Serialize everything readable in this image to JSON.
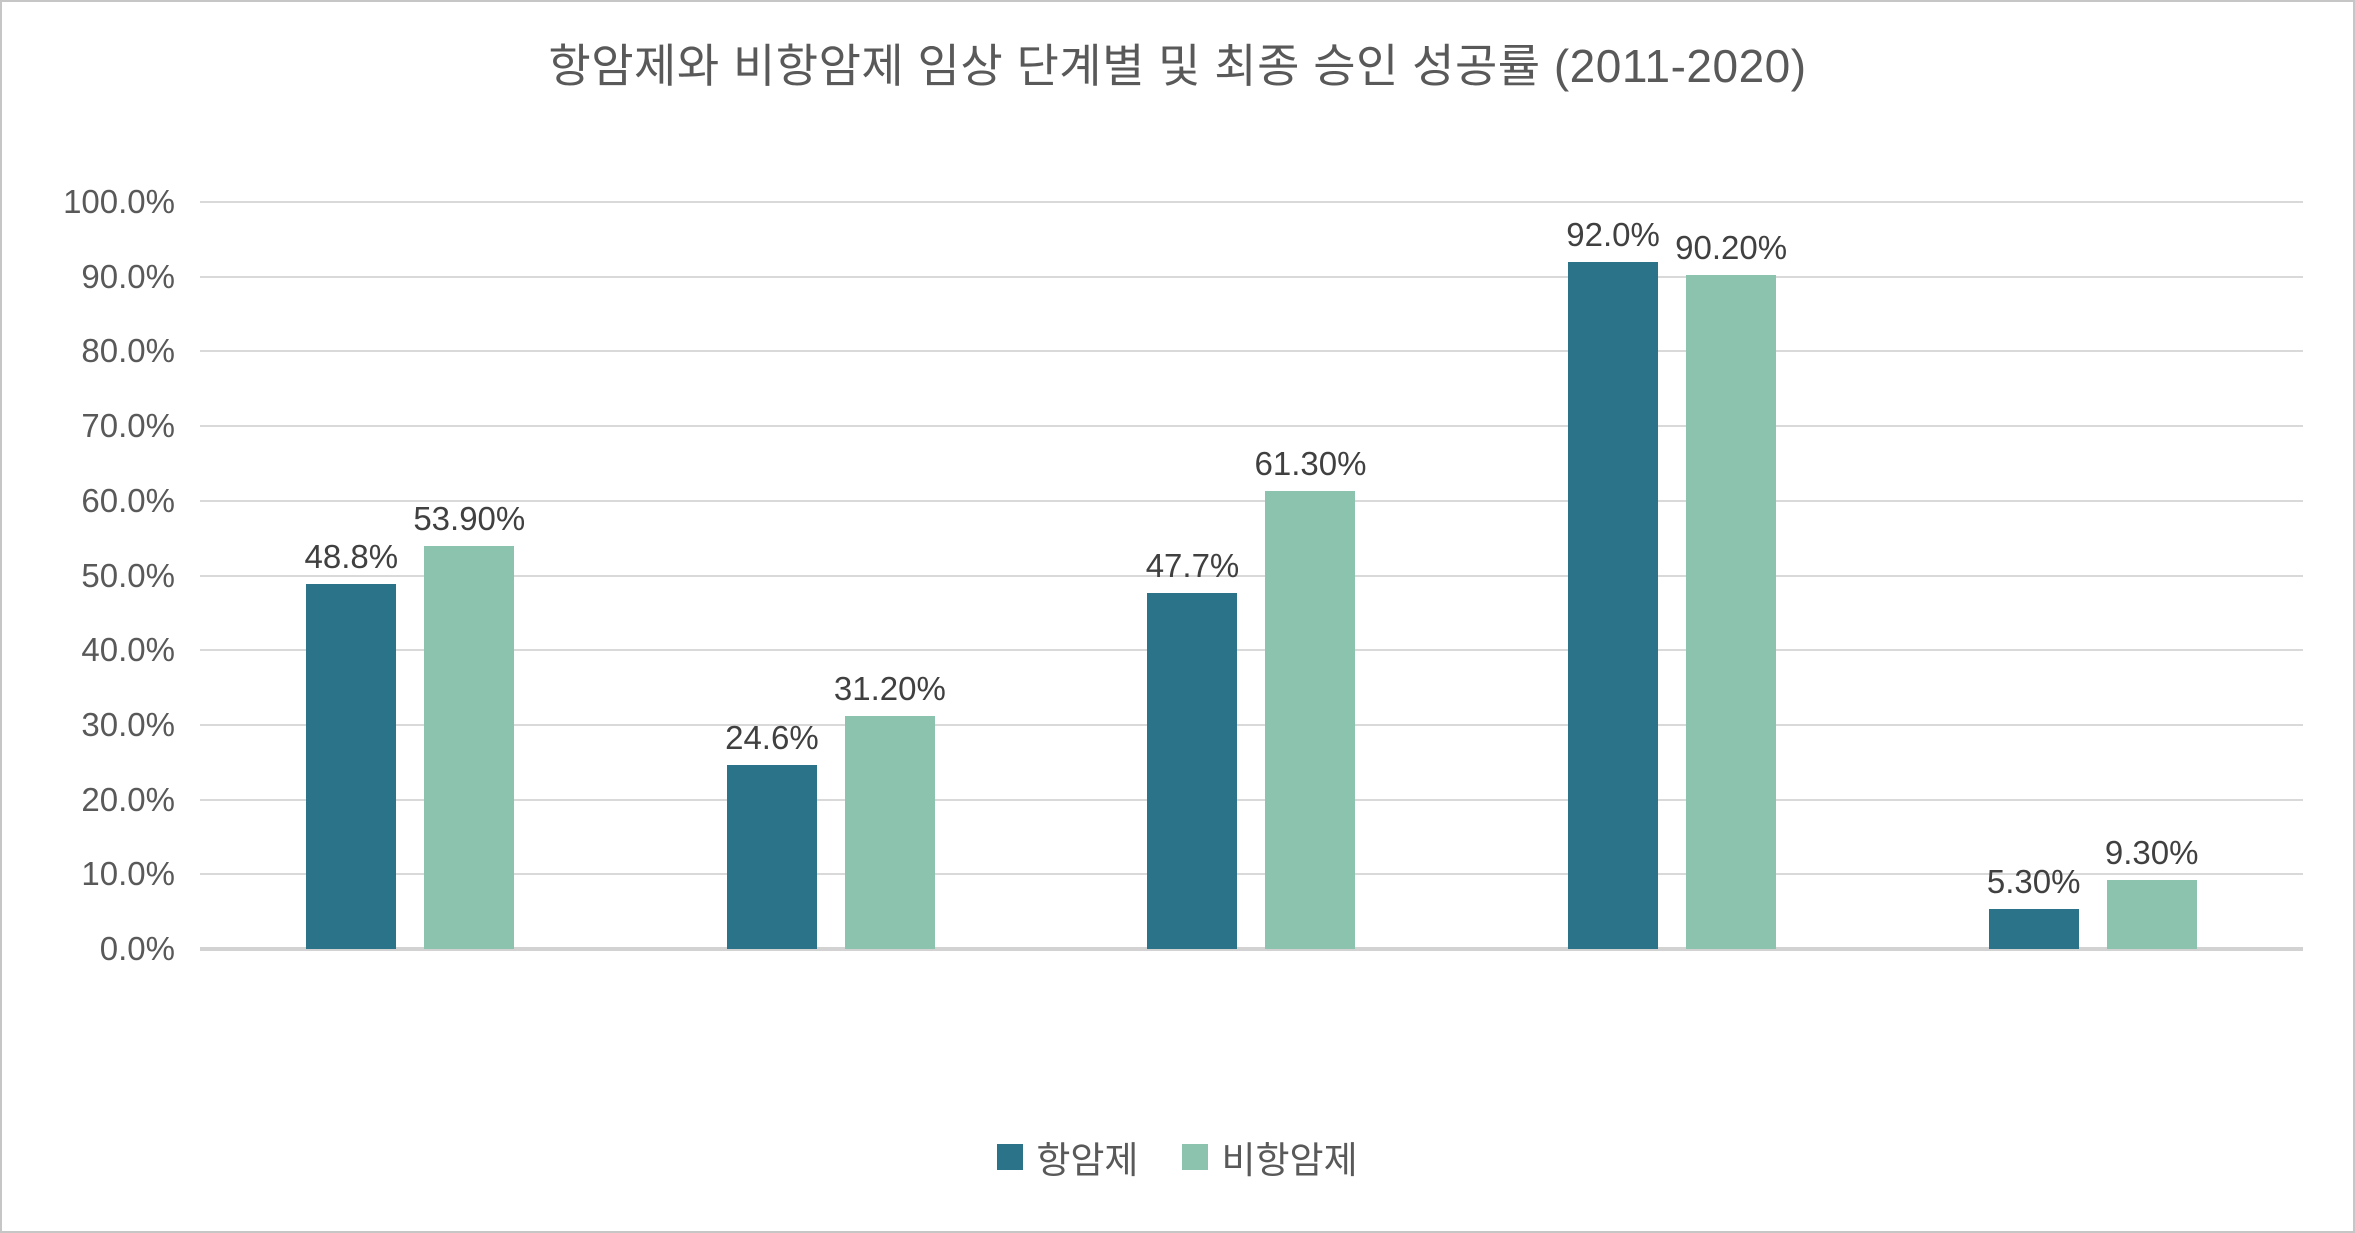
{
  "frame": {
    "background": "#ffffff",
    "border_color": "#c6c6c6"
  },
  "chart_data": {
    "type": "bar",
    "title": "항암제와 비항암제 임상 단계별 및 최종 승인 성공률 (2011-2020)",
    "xlabel": "",
    "ylabel": "",
    "categories": [
      "",
      "",
      "",
      "",
      ""
    ],
    "series": [
      {
        "name": "항암제",
        "color": "#2a7389",
        "values": [
          48.8,
          24.6,
          47.7,
          92.0,
          5.3
        ],
        "labels": [
          "48.8%",
          "24.6%",
          "47.7%",
          "92.0%",
          "5.30%"
        ]
      },
      {
        "name": "비항암제",
        "color": "#8cc3af",
        "values": [
          53.9,
          31.2,
          61.3,
          90.2,
          9.3
        ],
        "labels": [
          "53.90%",
          "31.20%",
          "61.30%",
          "90.20%",
          "9.30%"
        ]
      }
    ],
    "y_axis": {
      "min": 0,
      "max": 100,
      "step": 10,
      "tick_labels": [
        "0.0%",
        "10.0%",
        "20.0%",
        "30.0%",
        "40.0%",
        "50.0%",
        "60.0%",
        "70.0%",
        "80.0%",
        "90.0%",
        "100.0%"
      ]
    },
    "grid": true,
    "legend_position": "bottom",
    "colors": {
      "gridline": "#d9d9d9",
      "baseline": "#d2d2d2",
      "title_text": "#595959",
      "axis_text": "#595959",
      "data_label_text": "#404040",
      "legend_text": "#595959"
    }
  }
}
